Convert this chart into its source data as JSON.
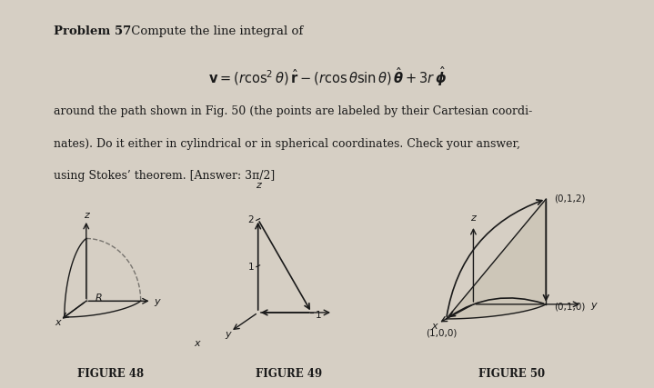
{
  "background_color": "#d6cfc4",
  "title_bold": "Problem 57",
  "title_normal": " Compute the line integral of",
  "equation": "v = (r cos^2 theta) r_hat - (r cos theta sin theta) theta_hat + 3r phi_hat",
  "body_text": [
    "around the path shown in Fig. 50 (the points are labeled by their Cartesian coordi-",
    "nates). Do it either in cylindrical or in spherical coordinates. Check your answer,",
    "using Stokes’ theorem. [Answer: 3π/2]"
  ],
  "fig48_label": "FIGURE 48",
  "fig49_label": "FIGURE 49",
  "fig50_label": "FIGURE 50",
  "fig48_R_label": "R",
  "fig50_points": [
    "(0,1,2)",
    "(0,1,0)",
    "(1,0,0)"
  ],
  "arrow_color": "#1a1a1a",
  "curve_color": "#1a1a1a",
  "axes_color": "#1a1a1a"
}
